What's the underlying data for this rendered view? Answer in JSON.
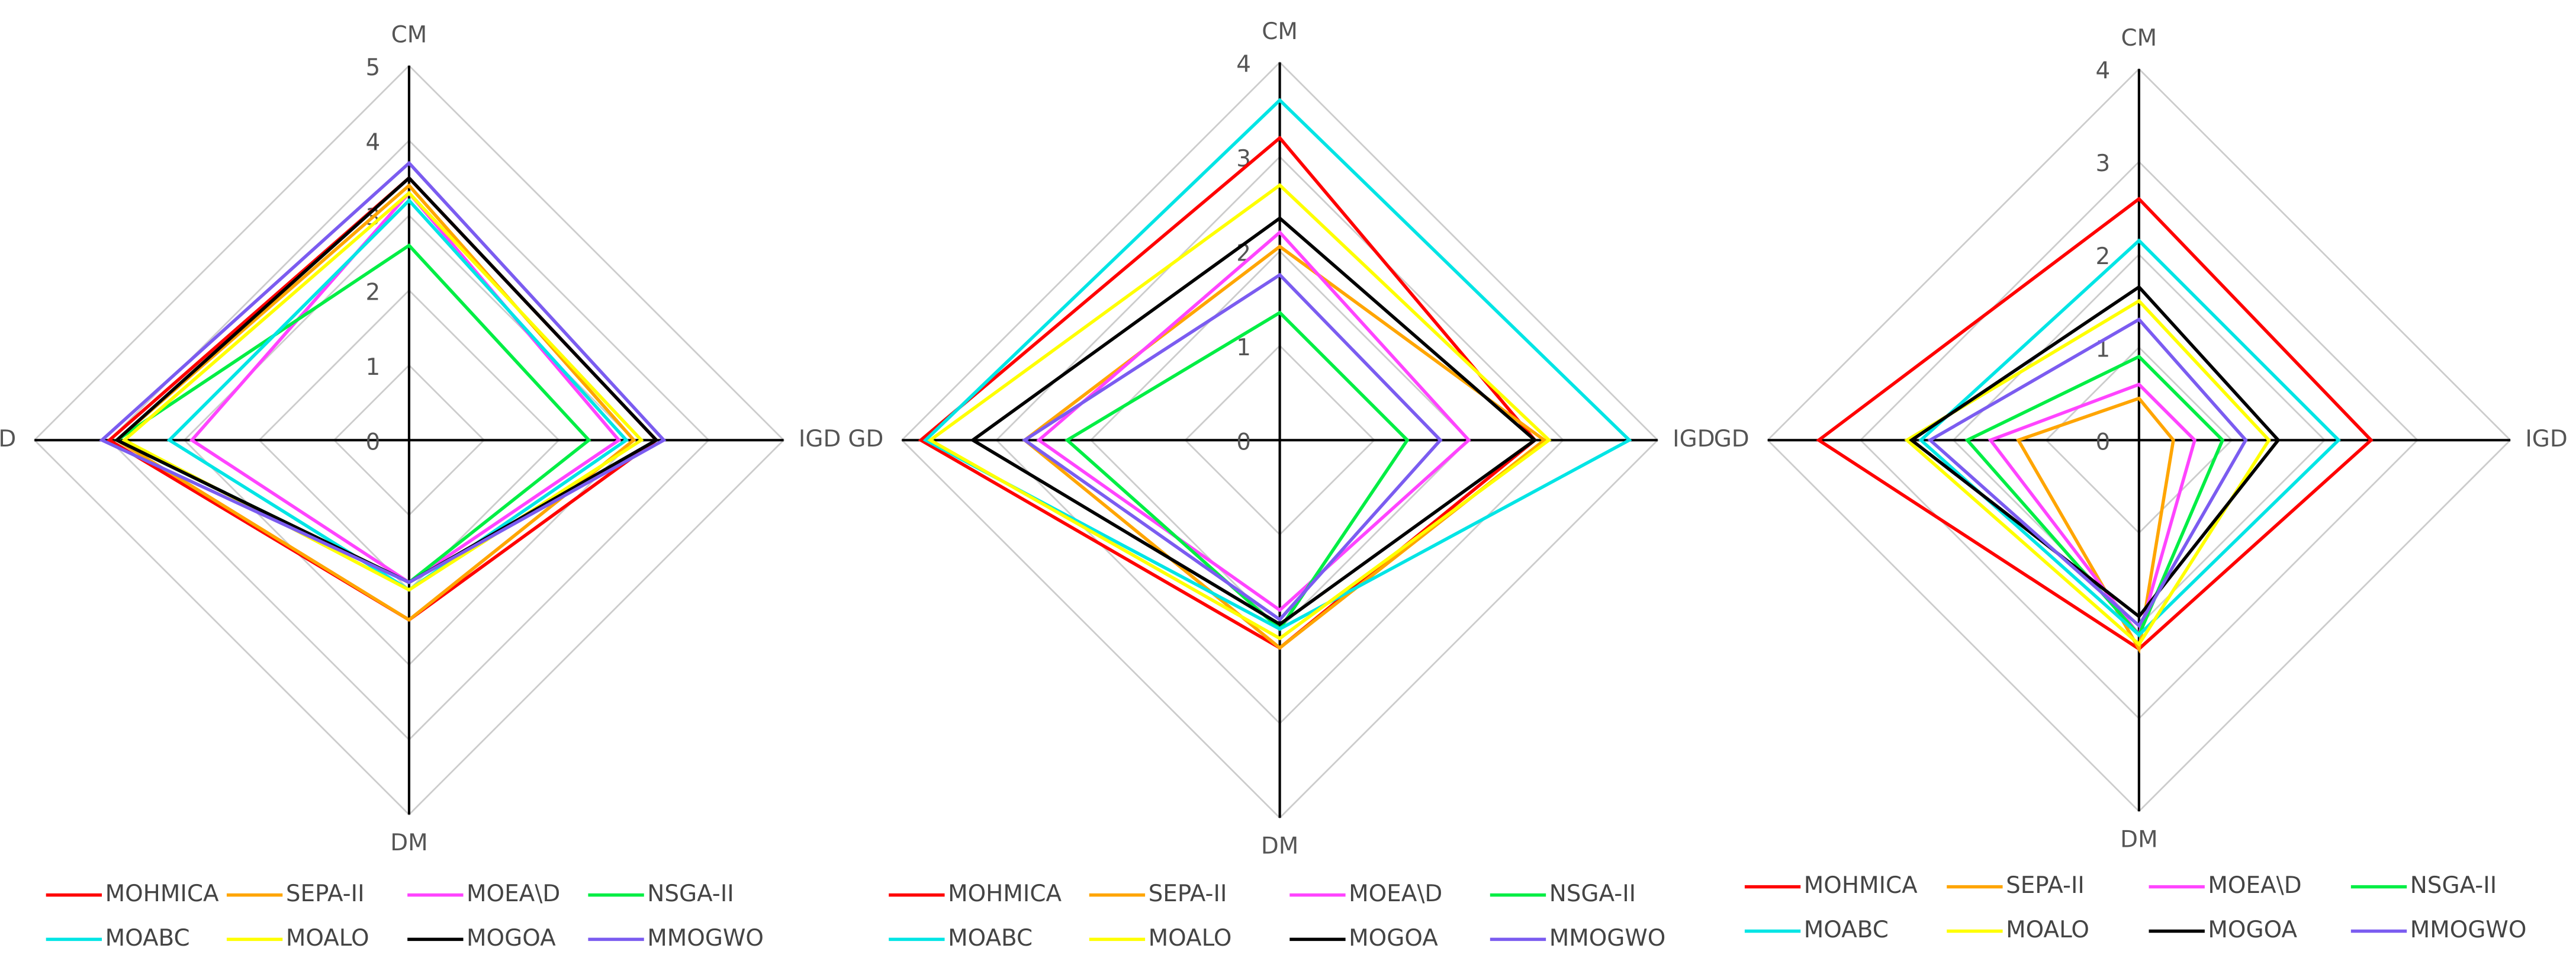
{
  "chart_data": [
    {
      "type": "radar",
      "axes": [
        "CM",
        "IGD",
        "DM",
        "GD"
      ],
      "rlim": [
        0,
        5
      ],
      "rticks": [
        0,
        1,
        2,
        3,
        4,
        5
      ],
      "series": [
        {
          "name": "MOHMICA",
          "color": "#ff0000",
          "values": [
            3.5,
            3.3,
            2.4,
            4.0
          ]
        },
        {
          "name": "SEPA-II",
          "color": "#ffa500",
          "values": [
            3.4,
            3.0,
            2.4,
            3.9
          ]
        },
        {
          "name": "MOEA\\D",
          "color": "#ff44ff",
          "values": [
            3.3,
            2.8,
            1.9,
            2.9
          ]
        },
        {
          "name": "NSGA-II",
          "color": "#00ee44",
          "values": [
            2.6,
            2.4,
            1.9,
            3.9
          ]
        },
        {
          "name": "MOABC",
          "color": "#00e5e5",
          "values": [
            3.2,
            2.9,
            2.0,
            3.2
          ]
        },
        {
          "name": "MOALO",
          "color": "#ffff00",
          "values": [
            3.3,
            3.1,
            2.0,
            3.8
          ]
        },
        {
          "name": "MOGOA",
          "color": "#000000",
          "values": [
            3.5,
            3.3,
            1.9,
            3.9
          ]
        },
        {
          "name": "MMOGWO",
          "color": "#7b5cf0",
          "values": [
            3.7,
            3.4,
            1.9,
            4.1
          ]
        }
      ]
    },
    {
      "type": "radar",
      "axes": [
        "CM",
        "IGD",
        "DM",
        "GD"
      ],
      "rlim": [
        0,
        4
      ],
      "rticks": [
        0,
        1,
        2,
        3,
        4
      ],
      "series": [
        {
          "name": "MOHMICA",
          "color": "#ff0000",
          "values": [
            3.2,
            2.7,
            2.2,
            3.8
          ]
        },
        {
          "name": "SEPA-II",
          "color": "#ffa500",
          "values": [
            2.05,
            2.8,
            2.2,
            2.7
          ]
        },
        {
          "name": "MOEA\\D",
          "color": "#ff44ff",
          "values": [
            2.2,
            2.0,
            1.8,
            2.55
          ]
        },
        {
          "name": "NSGA-II",
          "color": "#00ee44",
          "values": [
            1.35,
            1.35,
            2.0,
            2.25
          ]
        },
        {
          "name": "MOABC",
          "color": "#00e5e5",
          "values": [
            3.6,
            3.7,
            2.0,
            3.75
          ]
        },
        {
          "name": "MOALO",
          "color": "#ffff00",
          "values": [
            2.7,
            2.85,
            2.1,
            3.7
          ]
        },
        {
          "name": "MOGOA",
          "color": "#000000",
          "values": [
            2.35,
            2.7,
            1.95,
            3.25
          ]
        },
        {
          "name": "MMOGWO",
          "color": "#7b5cf0",
          "values": [
            1.75,
            1.7,
            1.9,
            2.7
          ]
        }
      ]
    },
    {
      "type": "radar",
      "axes": [
        "CM",
        "IGD",
        "DM",
        "GD"
      ],
      "rlim": [
        0,
        4
      ],
      "rticks": [
        0,
        1,
        2,
        3,
        4
      ],
      "series": [
        {
          "name": "MOHMICA",
          "color": "#ff0000",
          "values": [
            2.6,
            2.5,
            2.25,
            3.45
          ]
        },
        {
          "name": "SEPA-II",
          "color": "#ffa500",
          "values": [
            0.45,
            0.37,
            2.25,
            1.3
          ]
        },
        {
          "name": "MOEA\\D",
          "color": "#ff44ff",
          "values": [
            0.6,
            0.6,
            2.1,
            1.6
          ]
        },
        {
          "name": "NSGA-II",
          "color": "#00ee44",
          "values": [
            0.9,
            0.9,
            2.1,
            1.85
          ]
        },
        {
          "name": "MOABC",
          "color": "#00e5e5",
          "values": [
            2.15,
            2.15,
            2.1,
            2.35
          ]
        },
        {
          "name": "MOALO",
          "color": "#ffff00",
          "values": [
            1.5,
            1.4,
            2.2,
            2.5
          ]
        },
        {
          "name": "MOGOA",
          "color": "#000000",
          "values": [
            1.65,
            1.5,
            1.9,
            2.45
          ]
        },
        {
          "name": "MMOGWO",
          "color": "#7b5cf0",
          "values": [
            1.3,
            1.15,
            2.0,
            2.25
          ]
        }
      ]
    }
  ]
}
